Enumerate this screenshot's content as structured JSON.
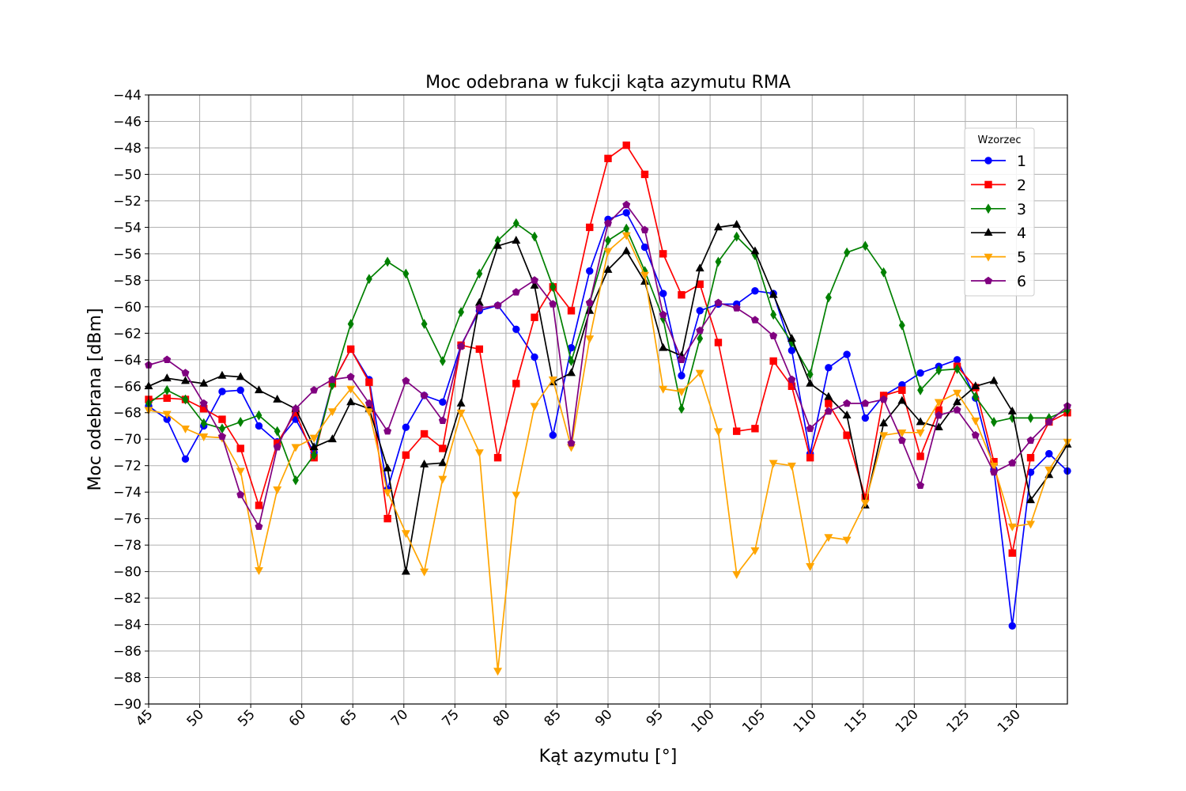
{
  "chart_data": {
    "type": "line",
    "title": "Moc odebrana w fukcji kąta azymutu RMA",
    "xlabel": "Kąt azymutu [°]",
    "ylabel": "Moc odebrana [dBm]",
    "xlim": [
      45,
      135
    ],
    "ylim": [
      -90,
      -44
    ],
    "xticks": [
      45,
      50,
      55,
      60,
      65,
      70,
      75,
      80,
      85,
      90,
      95,
      100,
      105,
      110,
      115,
      120,
      125,
      130
    ],
    "xtick_labels": [
      "45",
      "50",
      "55",
      "60",
      "65",
      "70",
      "75",
      "80",
      "85",
      "90",
      "95",
      "100",
      "105",
      "110",
      "115",
      "120",
      "125",
      "130"
    ],
    "yticks": [
      -90,
      -88,
      -86,
      -84,
      -82,
      -80,
      -78,
      -76,
      -74,
      -72,
      -70,
      -68,
      -66,
      -64,
      -62,
      -60,
      -58,
      -56,
      -54,
      -52,
      -50,
      -48,
      -46,
      -44
    ],
    "ytick_labels": [
      "−90",
      "−88",
      "−86",
      "−84",
      "−82",
      "−80",
      "−78",
      "−76",
      "−74",
      "−72",
      "−70",
      "−68",
      "−66",
      "−64",
      "−62",
      "−60",
      "−58",
      "−56",
      "−54",
      "−52",
      "−50",
      "−48",
      "−46",
      "−44"
    ],
    "grid": true,
    "legend": {
      "title": "Wzorzec",
      "placement": "top-right"
    },
    "x": [
      45,
      46.8,
      48.6,
      50.4,
      52.2,
      54,
      55.8,
      57.6,
      59.4,
      61.2,
      63,
      64.8,
      66.6,
      68.4,
      70.2,
      72,
      73.8,
      75.6,
      77.4,
      79.2,
      81,
      82.8,
      84.6,
      86.4,
      88.2,
      90,
      91.8,
      93.6,
      95.4,
      97.2,
      99,
      100.8,
      102.6,
      104.4,
      106.2,
      108,
      109.8,
      111.6,
      113.4,
      115.2,
      117,
      118.8,
      120.6,
      122.4,
      124.2,
      126,
      127.8,
      129.6,
      131.4,
      133.2,
      135
    ],
    "series": [
      {
        "name": "1",
        "color": "#0000ff",
        "marker": "circle",
        "values": [
          -67.5,
          -68.5,
          -71.5,
          -69.0,
          -66.4,
          -66.3,
          -69.0,
          -70.2,
          -68.5,
          -71.0,
          -65.8,
          -63.2,
          -65.5,
          -73.8,
          -69.1,
          -66.7,
          -67.2,
          -62.9,
          -60.3,
          -59.9,
          -61.7,
          -63.8,
          -69.7,
          -63.1,
          -57.3,
          -53.4,
          -52.9,
          -55.5,
          -59.0,
          -65.2,
          -60.3,
          -59.8,
          -59.8,
          -58.8,
          -59.0,
          -63.3,
          -71.1,
          -64.6,
          -63.6,
          -68.4,
          -66.7,
          -65.9,
          -65.0,
          -64.5,
          -64.0,
          -66.9,
          -72.3,
          -84.1,
          -72.5,
          -71.1,
          -72.4
        ]
      },
      {
        "name": "2",
        "color": "#ff0000",
        "marker": "square",
        "values": [
          -67.0,
          -66.9,
          -67.0,
          -67.7,
          -68.5,
          -70.7,
          -75.0,
          -70.3,
          -68.0,
          -71.4,
          -65.8,
          -63.2,
          -65.7,
          -76.0,
          -71.2,
          -69.6,
          -70.7,
          -62.9,
          -63.2,
          -71.4,
          -65.8,
          -60.8,
          -58.5,
          -60.3,
          -54.0,
          -48.8,
          -47.8,
          -50.0,
          -56.0,
          -59.1,
          -58.3,
          -62.7,
          -69.4,
          -69.2,
          -64.1,
          -66.0,
          -71.4,
          -67.3,
          -69.7,
          -74.4,
          -66.7,
          -66.3,
          -71.3,
          -67.8,
          -64.5,
          -66.1,
          -71.7,
          -78.6,
          -71.4,
          -68.7,
          -68.0
        ]
      },
      {
        "name": "3",
        "color": "#008000",
        "marker": "diamond",
        "values": [
          -67.3,
          -66.3,
          -67.0,
          -68.8,
          -69.2,
          -68.7,
          -68.2,
          -69.4,
          -73.1,
          -71.2,
          -65.9,
          -61.3,
          -57.9,
          -56.6,
          -57.5,
          -61.3,
          -64.1,
          -60.4,
          -57.5,
          -55.0,
          -53.7,
          -54.7,
          -58.5,
          -64.1,
          -59.7,
          -55.0,
          -54.1,
          -57.3,
          -60.9,
          -67.7,
          -62.4,
          -56.6,
          -54.7,
          -56.1,
          -60.6,
          -62.7,
          -65.1,
          -59.3,
          -55.9,
          -55.4,
          -57.4,
          -61.4,
          -66.3,
          -64.8,
          -64.7,
          -66.8,
          -68.7,
          -68.4,
          -68.4,
          -68.4,
          -67.8
        ]
      },
      {
        "name": "4",
        "color": "#000000",
        "marker": "triangle-up",
        "values": [
          -66.0,
          -65.4,
          -65.6,
          -65.8,
          -65.2,
          -65.3,
          -66.3,
          -67.0,
          -67.7,
          -70.6,
          -70.0,
          -67.2,
          -67.7,
          -72.2,
          -80.0,
          -71.9,
          -71.8,
          -67.3,
          -59.7,
          -55.4,
          -55.0,
          -58.4,
          -65.7,
          -65.0,
          -60.3,
          -57.2,
          -55.8,
          -58.1,
          -63.1,
          -63.7,
          -57.1,
          -54.0,
          -53.8,
          -55.8,
          -59.1,
          -62.4,
          -65.8,
          -66.8,
          -68.2,
          -75.0,
          -68.8,
          -67.1,
          -68.7,
          -69.1,
          -67.2,
          -66.0,
          -65.6,
          -67.9,
          -74.6,
          -72.7,
          -70.4
        ]
      },
      {
        "name": "5",
        "color": "#ffa500",
        "marker": "triangle-down",
        "values": [
          -67.8,
          -68.1,
          -69.2,
          -69.8,
          -69.9,
          -72.4,
          -79.9,
          -73.8,
          -70.6,
          -69.9,
          -67.9,
          -66.2,
          -67.9,
          -74.0,
          -77.1,
          -80.0,
          -73.0,
          -68.0,
          -71.0,
          -87.5,
          -74.2,
          -67.5,
          -65.5,
          -70.6,
          -62.4,
          -55.8,
          -54.6,
          -57.6,
          -66.2,
          -66.4,
          -65.0,
          -69.4,
          -80.2,
          -78.4,
          -71.8,
          -72.0,
          -79.6,
          -77.4,
          -77.6,
          -74.8,
          -69.7,
          -69.5,
          -69.5,
          -67.2,
          -66.5,
          -68.6,
          -72.0,
          -76.6,
          -76.4,
          -72.3,
          -70.2
        ]
      },
      {
        "name": "6",
        "color": "#800080",
        "marker": "pentagon",
        "values": [
          -64.4,
          -64.0,
          -65.0,
          -67.3,
          -69.8,
          -74.2,
          -76.6,
          -70.6,
          -67.7,
          -66.3,
          -65.5,
          -65.3,
          -67.3,
          -69.4,
          -65.6,
          -66.7,
          -68.6,
          -63.0,
          -60.1,
          -59.9,
          -58.9,
          -58.0,
          -59.8,
          -70.3,
          -59.7,
          -53.7,
          -52.3,
          -54.2,
          -60.6,
          -64.0,
          -61.8,
          -59.7,
          -60.1,
          -61.0,
          -62.2,
          -65.5,
          -69.2,
          -67.9,
          -67.3,
          -67.3,
          -67.0,
          -70.1,
          -73.5,
          -68.2,
          -67.8,
          -69.7,
          -72.5,
          -71.8,
          -70.1,
          -68.7,
          -67.5
        ]
      }
    ]
  }
}
